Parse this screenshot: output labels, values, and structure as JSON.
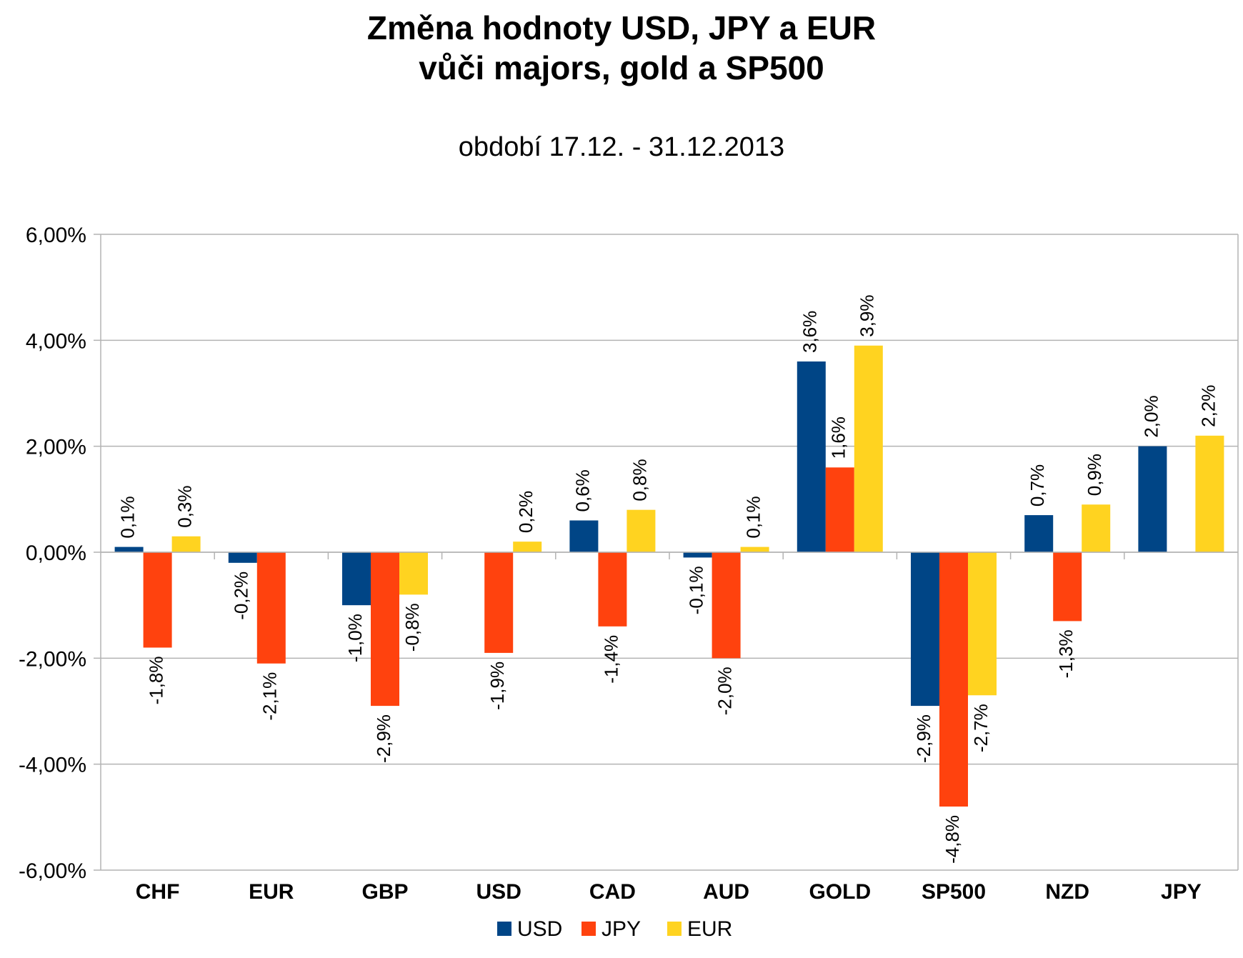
{
  "chart_data": {
    "type": "bar",
    "title_line1": "Změna hodnoty USD, JPY a EUR",
    "title_line2": "vůči majors, gold a SP500",
    "subtitle": "období 17.12. - 31.12.2013",
    "categories": [
      "CHF",
      "EUR",
      "GBP",
      "USD",
      "CAD",
      "AUD",
      "GOLD",
      "SP500",
      "NZD",
      "JPY"
    ],
    "series": [
      {
        "name": "USD",
        "color": "#004586",
        "values": [
          0.1,
          -0.2,
          -1.0,
          null,
          0.6,
          -0.1,
          3.6,
          -2.9,
          0.7,
          2.0
        ],
        "labels": [
          "0,1%",
          "-0,2%",
          "-1,0%",
          null,
          "0,6%",
          "-0,1%",
          "3,6%",
          "-2,9%",
          "0,7%",
          "2,0%"
        ]
      },
      {
        "name": "JPY",
        "color": "#ff420e",
        "values": [
          -1.8,
          -2.1,
          -2.9,
          -1.9,
          -1.4,
          -2.0,
          1.6,
          -4.8,
          -1.3,
          null
        ],
        "labels": [
          "-1,8%",
          "-2,1%",
          "-2,9%",
          "-1,9%",
          "-1,4%",
          "-2,0%",
          "1,6%",
          "-4,8%",
          "-1,3%",
          null
        ]
      },
      {
        "name": "EUR",
        "color": "#ffd320",
        "values": [
          0.3,
          null,
          -0.8,
          0.2,
          0.8,
          0.1,
          3.9,
          -2.7,
          0.9,
          2.2
        ],
        "labels": [
          "0,3%",
          null,
          "-0,8%",
          "0,2%",
          "0,8%",
          "0,1%",
          "3,9%",
          "-2,7%",
          "0,9%",
          "2,2%"
        ]
      }
    ],
    "ylim": [
      -6,
      6
    ],
    "yticks": [
      6,
      4,
      2,
      0,
      -2,
      -4,
      -6
    ],
    "ytick_labels": [
      "6,00%",
      "4,00%",
      "2,00%",
      "0,00%",
      "-2,00%",
      "-4,00%",
      "-6,00%"
    ],
    "grid": true,
    "legend": "bottom"
  }
}
